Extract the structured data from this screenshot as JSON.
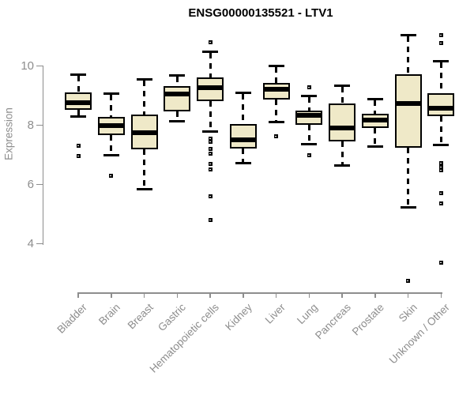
{
  "chart_data": {
    "type": "boxplot",
    "title": "ENSG00000135521 - LTV1",
    "ylabel": "Expression",
    "xlabel": "",
    "yticks": [
      10,
      8,
      6,
      4
    ],
    "ylim_drawn": [
      4,
      10
    ],
    "grid": false,
    "legend": "none",
    "categories": [
      "Bladder",
      "Brain",
      "Breast",
      "Gastric",
      "Hematopoietic cells",
      "Kidney",
      "Liver",
      "Lung",
      "Pancreas",
      "Prostate",
      "Skin",
      "Unknown / Other"
    ],
    "series": [
      {
        "name": "Bladder",
        "whisker_low": 8.3,
        "q1": 8.53,
        "median": 8.76,
        "q3": 9.1,
        "whisker_high": 9.7,
        "outliers": [
          7.3,
          6.95
        ]
      },
      {
        "name": "Brain",
        "whisker_low": 7.0,
        "q1": 7.67,
        "median": 8.0,
        "q3": 8.27,
        "whisker_high": 9.07,
        "outliers": [
          6.3
        ]
      },
      {
        "name": "Breast",
        "whisker_low": 5.83,
        "q1": 7.2,
        "median": 7.75,
        "q3": 8.35,
        "whisker_high": 9.55,
        "outliers": []
      },
      {
        "name": "Gastric",
        "whisker_low": 8.14,
        "q1": 8.47,
        "median": 9.05,
        "q3": 9.33,
        "whisker_high": 9.67,
        "outliers": []
      },
      {
        "name": "Hematopoietic cells",
        "whisker_low": 7.78,
        "q1": 8.82,
        "median": 9.27,
        "q3": 9.62,
        "whisker_high": 10.47,
        "outliers": [
          10.8,
          7.55,
          7.45,
          7.2,
          7.05,
          6.7,
          6.5,
          5.6,
          4.8
        ]
      },
      {
        "name": "Kidney",
        "whisker_low": 6.73,
        "q1": 7.21,
        "median": 7.52,
        "q3": 8.03,
        "whisker_high": 9.1,
        "outliers": []
      },
      {
        "name": "Liver",
        "whisker_low": 8.11,
        "q1": 8.86,
        "median": 9.22,
        "q3": 9.44,
        "whisker_high": 10.0,
        "outliers": [
          7.63
        ]
      },
      {
        "name": "Lung",
        "whisker_low": 7.37,
        "q1": 8.01,
        "median": 8.34,
        "q3": 8.49,
        "whisker_high": 8.98,
        "outliers": [
          9.29,
          7.0
        ]
      },
      {
        "name": "Pancreas",
        "whisker_low": 6.63,
        "q1": 7.45,
        "median": 7.9,
        "q3": 8.74,
        "whisker_high": 9.34,
        "outliers": []
      },
      {
        "name": "Prostate",
        "whisker_low": 7.29,
        "q1": 7.91,
        "median": 8.18,
        "q3": 8.38,
        "whisker_high": 8.87,
        "outliers": []
      },
      {
        "name": "Skin",
        "whisker_low": 5.22,
        "q1": 7.23,
        "median": 8.73,
        "q3": 9.72,
        "whisker_high": 11.05,
        "outliers": [
          2.75
        ]
      },
      {
        "name": "Unknown / Other",
        "whisker_low": 7.33,
        "q1": 8.3,
        "median": 8.58,
        "q3": 9.07,
        "whisker_high": 10.15,
        "outliers": [
          11.05,
          10.78,
          6.73,
          6.6,
          6.48,
          5.72,
          5.35,
          3.35
        ]
      }
    ],
    "colors": {
      "box_fill": "#efe9c8",
      "box_border": "#000000",
      "median": "#000000",
      "whisker": "#000000",
      "axis": "#8d8d8d",
      "tick_text": "#8d8d8d",
      "title_text": "#000000"
    }
  }
}
